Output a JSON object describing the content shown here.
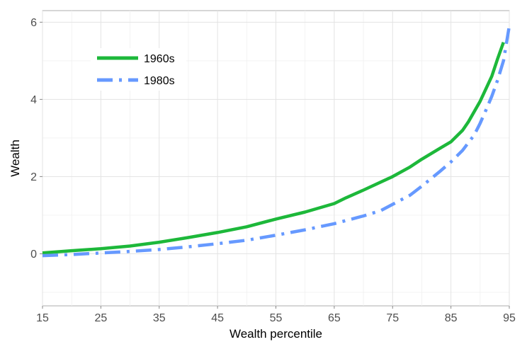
{
  "chart_data": {
    "type": "line",
    "title": "",
    "xlabel": "Wealth percentile",
    "ylabel": "Wealth",
    "xlim": [
      15,
      95
    ],
    "ylim": [
      -1.35,
      6.3
    ],
    "x_ticks": [
      15,
      25,
      35,
      45,
      55,
      65,
      75,
      85,
      95
    ],
    "y_ticks": [
      0,
      2,
      4,
      6
    ],
    "grid": true,
    "legend_position": "top-left",
    "series": [
      {
        "name": "1960s",
        "color": "#1db83a",
        "style": "solid",
        "x": [
          15,
          20,
          25,
          30,
          35,
          40,
          45,
          50,
          55,
          60,
          65,
          67,
          70,
          75,
          78,
          80,
          83,
          85,
          87,
          88,
          90,
          92,
          93,
          94
        ],
        "y": [
          0.02,
          0.08,
          0.13,
          0.2,
          0.3,
          0.42,
          0.55,
          0.7,
          0.9,
          1.08,
          1.3,
          1.45,
          1.65,
          2.0,
          2.25,
          2.45,
          2.72,
          2.9,
          3.2,
          3.42,
          3.95,
          4.6,
          5.05,
          5.48
        ]
      },
      {
        "name": "1980s",
        "color": "#6699ff",
        "style": "dash-dot",
        "x": [
          15,
          20,
          25,
          30,
          35,
          40,
          45,
          50,
          55,
          60,
          65,
          70,
          73,
          75,
          78,
          80,
          83,
          85,
          87,
          89,
          90,
          91,
          92,
          93,
          94,
          95
        ],
        "y": [
          -0.05,
          -0.02,
          0.02,
          0.06,
          0.11,
          0.18,
          0.26,
          0.35,
          0.48,
          0.62,
          0.78,
          0.98,
          1.12,
          1.28,
          1.52,
          1.75,
          2.12,
          2.38,
          2.68,
          3.08,
          3.38,
          3.72,
          4.08,
          4.5,
          5.0,
          5.9
        ]
      }
    ]
  }
}
